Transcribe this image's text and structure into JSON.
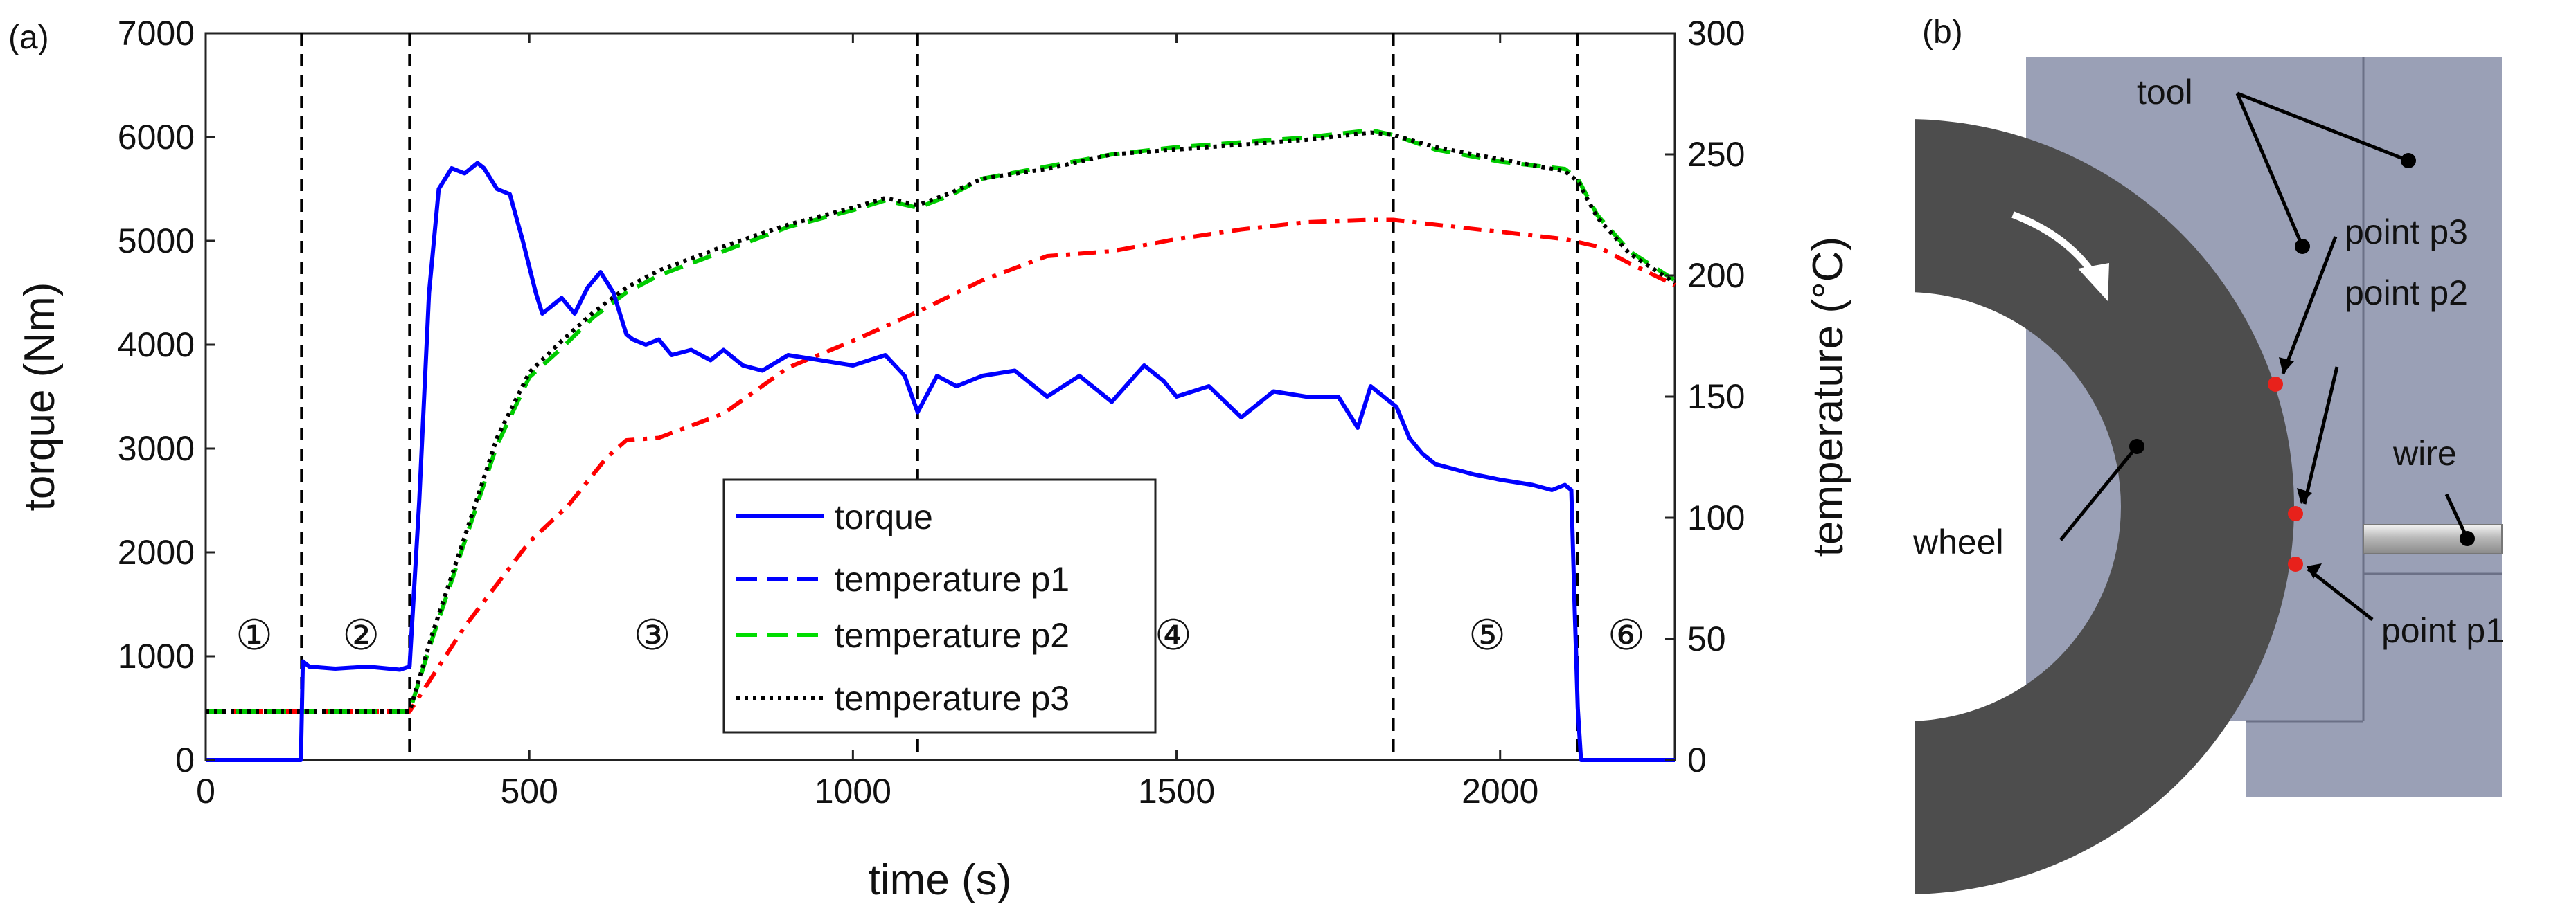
{
  "chart_data": {
    "type": "line",
    "panel_label": "(a)",
    "xlabel": "time (s)",
    "ylabel": "torque (Nm)",
    "y2label": "temperature (°C)",
    "xlim": [
      0,
      2270
    ],
    "ylim": [
      0,
      7000
    ],
    "y2lim": [
      0,
      300
    ],
    "x_ticks": [
      "0",
      "500",
      "1000",
      "1500",
      "2000"
    ],
    "y_ticks": [
      "0",
      "1000",
      "2000",
      "3000",
      "4000",
      "5000",
      "6000",
      "7000"
    ],
    "y2_ticks": [
      "0",
      "50",
      "100",
      "150",
      "200",
      "250",
      "300"
    ],
    "phase_boundaries": [
      148,
      315,
      1100,
      1835,
      2120
    ],
    "phase_labels": [
      {
        "label": "①",
        "x": 75,
        "y": 1200
      },
      {
        "label": "②",
        "x": 240,
        "y": 1200
      },
      {
        "label": "③",
        "x": 690,
        "y": 1200
      },
      {
        "label": "④",
        "x": 1495,
        "y": 1200
      },
      {
        "label": "⑤",
        "x": 1980,
        "y": 1200
      },
      {
        "label": "⑥",
        "x": 2195,
        "y": 1200
      }
    ],
    "legend_position": "lower-center",
    "series": [
      {
        "name": "torque",
        "axis": "left",
        "color": "#0000ff",
        "style": "solid",
        "x": [
          0,
          147,
          150,
          160,
          200,
          250,
          300,
          315,
          330,
          345,
          360,
          380,
          400,
          420,
          430,
          450,
          470,
          490,
          510,
          520,
          550,
          570,
          590,
          610,
          630,
          650,
          660,
          680,
          700,
          720,
          750,
          780,
          800,
          830,
          860,
          900,
          950,
          1000,
          1050,
          1080,
          1100,
          1130,
          1160,
          1200,
          1250,
          1300,
          1350,
          1400,
          1450,
          1480,
          1500,
          1550,
          1600,
          1650,
          1700,
          1750,
          1780,
          1800,
          1820,
          1840,
          1860,
          1880,
          1900,
          1930,
          1960,
          2000,
          2050,
          2080,
          2100,
          2110,
          2115,
          2120,
          2125,
          2270
        ],
        "y": [
          0,
          0,
          950,
          900,
          880,
          900,
          870,
          900,
          2500,
          4500,
          5500,
          5700,
          5650,
          5750,
          5700,
          5500,
          5450,
          5000,
          4500,
          4300,
          4450,
          4300,
          4550,
          4700,
          4500,
          4100,
          4050,
          4000,
          4050,
          3900,
          3950,
          3850,
          3950,
          3800,
          3750,
          3900,
          3850,
          3800,
          3900,
          3700,
          3350,
          3700,
          3600,
          3700,
          3750,
          3500,
          3700,
          3450,
          3800,
          3650,
          3500,
          3600,
          3300,
          3550,
          3500,
          3500,
          3200,
          3600,
          3500,
          3400,
          3100,
          2950,
          2850,
          2800,
          2750,
          2700,
          2650,
          2600,
          2650,
          2600,
          1500,
          500,
          0,
          0
        ]
      },
      {
        "name": "temperature p1",
        "axis": "right",
        "color": "#ff0000",
        "style": "dashdot",
        "x": [
          0,
          315,
          400,
          500,
          560,
          620,
          650,
          700,
          800,
          900,
          1000,
          1100,
          1200,
          1300,
          1400,
          1500,
          1600,
          1700,
          1800,
          1835,
          1900,
          2000,
          2100,
          2150,
          2200,
          2270
        ],
        "y": [
          20,
          20,
          55,
          90,
          105,
          125,
          132,
          133,
          143,
          162,
          173,
          185,
          198,
          208,
          210,
          215,
          219,
          222,
          223,
          223,
          221,
          218,
          215,
          212,
          205,
          196
        ]
      },
      {
        "name": "temperature p2",
        "axis": "right",
        "color": "#00cc00",
        "style": "dashed",
        "x": [
          0,
          315,
          350,
          400,
          450,
          500,
          550,
          600,
          650,
          700,
          800,
          900,
          1000,
          1050,
          1100,
          1150,
          1200,
          1300,
          1400,
          1500,
          1600,
          1700,
          1800,
          1835,
          1900,
          2000,
          2100,
          2120,
          2150,
          2200,
          2270
        ],
        "y": [
          20,
          20,
          50,
          90,
          130,
          158,
          170,
          183,
          193,
          200,
          210,
          220,
          227,
          231,
          228,
          233,
          240,
          245,
          250,
          253,
          255,
          257,
          260,
          258,
          252,
          247,
          244,
          240,
          225,
          210,
          198
        ]
      },
      {
        "name": "temperature p3",
        "axis": "right",
        "color": "#000000",
        "style": "dotted",
        "x": [
          0,
          315,
          350,
          400,
          450,
          500,
          550,
          600,
          650,
          700,
          800,
          900,
          1000,
          1050,
          1100,
          1150,
          1200,
          1300,
          1400,
          1500,
          1600,
          1700,
          1800,
          1835,
          1900,
          2000,
          2100,
          2120,
          2150,
          2200,
          2270
        ],
        "y": [
          20,
          20,
          52,
          92,
          133,
          160,
          173,
          185,
          195,
          202,
          212,
          221,
          228,
          232,
          229,
          234,
          240,
          244,
          250,
          252,
          254,
          256,
          259,
          258,
          253,
          248,
          243,
          239,
          224,
          209,
          197
        ]
      }
    ]
  },
  "diagram": {
    "panel_label": "(b)",
    "labels": {
      "tool": "tool",
      "wheel": "wheel",
      "wire": "wire",
      "point_p1": "point p1",
      "point_p2": "point p2",
      "point_p3": "point p3"
    },
    "colors": {
      "tool": "#9aa0b6",
      "wheel": "#4d4d4d",
      "points": "#e8211b"
    }
  }
}
